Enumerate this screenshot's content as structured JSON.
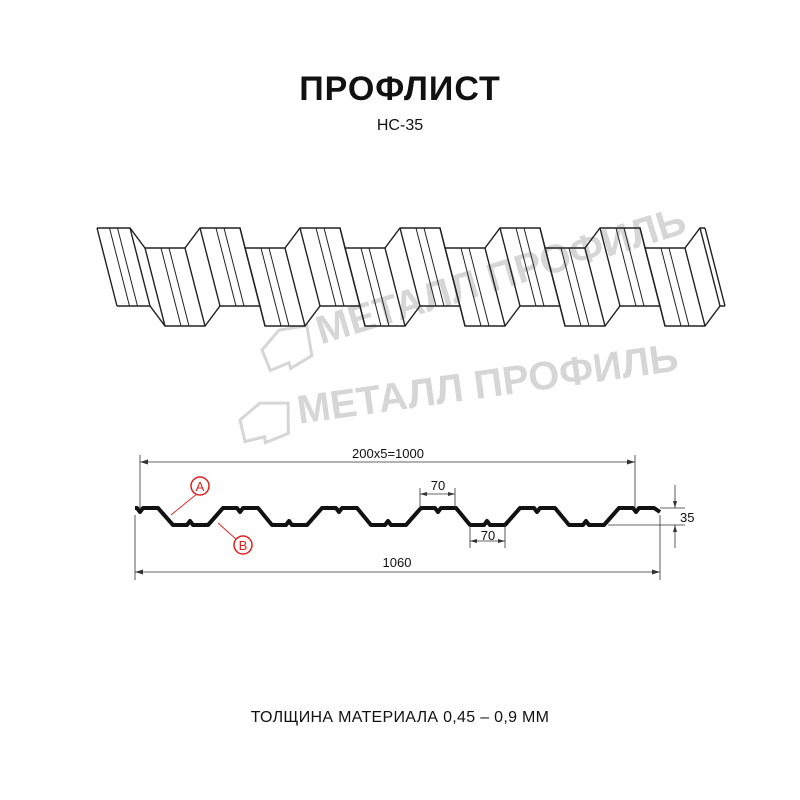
{
  "title": "ПРОФЛИСТ",
  "subtitle": "НС-35",
  "footer": "ТОЛЩИНА МАТЕРИАЛА 0,45 – 0,9 ММ",
  "watermark": "МЕТАЛЛ ПРОФИЛЬ",
  "dimensions": {
    "useful_width": "200x5=1000",
    "total_width": "1060",
    "rib_top_width": "70",
    "rib_bottom_width": "70",
    "height": "35"
  },
  "markers": {
    "a": "A",
    "b": "B"
  },
  "colors": {
    "profile": "#111111",
    "marker": "#e0201c",
    "watermark": "#d6d6d6"
  }
}
